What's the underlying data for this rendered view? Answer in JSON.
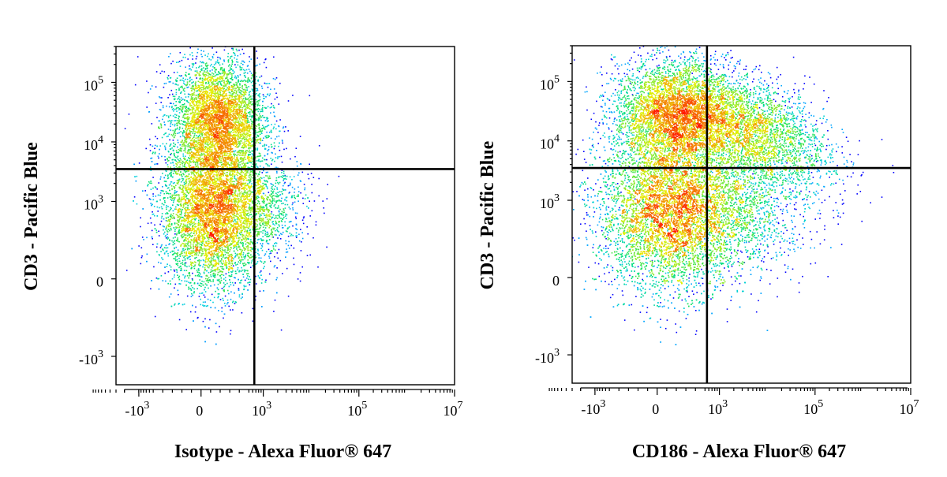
{
  "chart_data": [
    {
      "type": "scatter",
      "subtype": "flow-cytometry-density",
      "xlabel": "Isotype - Alexa Fluor® 647",
      "ylabel": "CD3 - Pacific Blue",
      "x_scale": "biexponential",
      "y_scale": "biexponential",
      "xlim": [
        -3000,
        10000000
      ],
      "ylim": [
        -3000,
        400000
      ],
      "x_ticks": [
        {
          "value": -1000,
          "base": "-10",
          "exp": "3"
        },
        {
          "value": 0,
          "base": "0",
          "exp": ""
        },
        {
          "value": 1000,
          "base": "10",
          "exp": "3"
        },
        {
          "value": 100000,
          "base": "10",
          "exp": "5"
        },
        {
          "value": 10000000,
          "base": "10",
          "exp": "7"
        }
      ],
      "y_ticks": [
        {
          "value": 100000,
          "base": "10",
          "exp": "5"
        },
        {
          "value": 10000,
          "base": "10",
          "exp": "4"
        },
        {
          "value": 1000,
          "base": "10",
          "exp": "3"
        },
        {
          "value": 0,
          "base": "0",
          "exp": ""
        },
        {
          "value": -1000,
          "base": "-10",
          "exp": "3"
        }
      ],
      "quadrant_gate": {
        "x": 650,
        "y": 3500
      },
      "grid": false,
      "legend": "none",
      "populations": [
        {
          "x_center": 170,
          "y_center": 25000,
          "x_spread": 0.9,
          "y_spread": 0.9,
          "points": 4200,
          "tilt": 0
        },
        {
          "x_center": 130,
          "y_center": 700,
          "x_spread": 1.0,
          "y_spread": 1.2,
          "points": 6500,
          "tilt": 0
        },
        {
          "x_center": 1300,
          "y_center": 800,
          "x_spread": 0.8,
          "y_spread": 0.8,
          "points": 600,
          "tilt": 0
        }
      ]
    },
    {
      "type": "scatter",
      "subtype": "flow-cytometry-density",
      "xlabel": "CD186 - Alexa Fluor® 647",
      "ylabel": "CD3 - Pacific Blue",
      "x_scale": "biexponential",
      "y_scale": "biexponential",
      "xlim": [
        -3000,
        10000000
      ],
      "ylim": [
        -3000,
        400000
      ],
      "x_ticks": [
        {
          "value": -1000,
          "base": "-10",
          "exp": "3"
        },
        {
          "value": 0,
          "base": "0",
          "exp": ""
        },
        {
          "value": 1000,
          "base": "10",
          "exp": "3"
        },
        {
          "value": 100000,
          "base": "10",
          "exp": "5"
        },
        {
          "value": 10000000,
          "base": "10",
          "exp": "7"
        }
      ],
      "y_ticks": [
        {
          "value": 100000,
          "base": "10",
          "exp": "5"
        },
        {
          "value": 10000,
          "base": "10",
          "exp": "4"
        },
        {
          "value": 1000,
          "base": "10",
          "exp": "3"
        },
        {
          "value": 0,
          "base": "0",
          "exp": ""
        },
        {
          "value": -1000,
          "base": "-10",
          "exp": "3"
        }
      ],
      "quadrant_gate": {
        "x": 550,
        "y": 3500
      },
      "grid": false,
      "legend": "none",
      "populations": [
        {
          "x_center": 150,
          "y_center": 28000,
          "x_spread": 1.1,
          "y_spread": 0.8,
          "points": 3800,
          "tilt": 0
        },
        {
          "x_center": 3000,
          "y_center": 17000,
          "x_spread": 1.6,
          "y_spread": 0.8,
          "points": 3600,
          "tilt": -0.25
        },
        {
          "x_center": 160,
          "y_center": 650,
          "x_spread": 1.4,
          "y_spread": 1.2,
          "points": 7500,
          "tilt": 0
        },
        {
          "x_center": 4000,
          "y_center": 700,
          "x_spread": 1.3,
          "y_spread": 0.9,
          "points": 900,
          "tilt": 0
        }
      ]
    }
  ],
  "colors": {
    "density_low": "#0000ff",
    "density_mid_low": "#00c8ff",
    "density_mid": "#00e070",
    "density_mid_high": "#e8f000",
    "density_high": "#ff1a00",
    "axes": "#000000"
  }
}
